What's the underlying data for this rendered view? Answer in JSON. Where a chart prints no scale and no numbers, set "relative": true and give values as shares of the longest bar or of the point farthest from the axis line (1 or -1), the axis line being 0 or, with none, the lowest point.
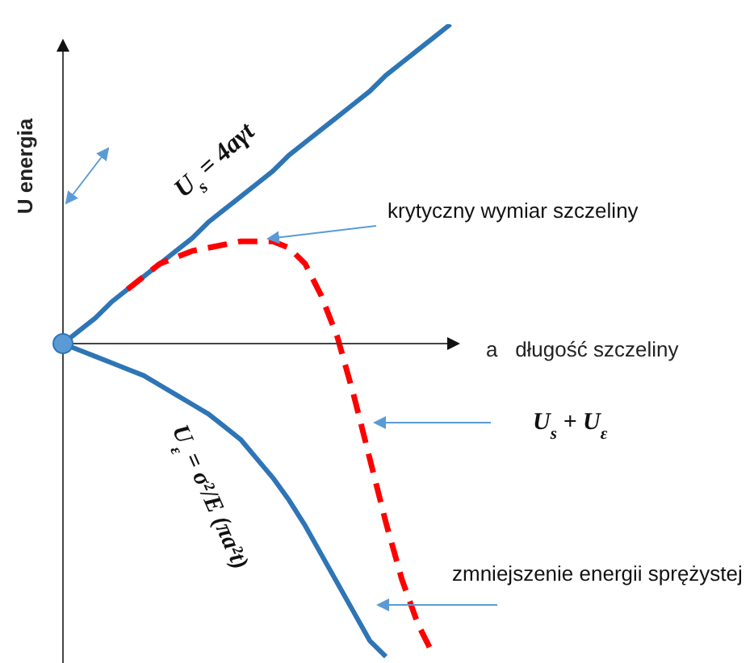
{
  "chart_data": {
    "type": "line",
    "relative": true,
    "xlabel": "a   długość szczeliny",
    "ylabel": "U energia",
    "categories": [
      null,
      null,
      null,
      null,
      null,
      null,
      null,
      null,
      null,
      null,
      null,
      null,
      null,
      null,
      null,
      null,
      null,
      null,
      null,
      null,
      null,
      null,
      null,
      null,
      null
    ],
    "series": [
      {
        "name": "U$_{s}$ = 4aγt",
        "color": "#2e75b6",
        "values": [
          0,
          0.04,
          0.08,
          0.13,
          0.17,
          0.21,
          0.25,
          0.29,
          0.33,
          0.38,
          0.42,
          0.46,
          0.5,
          0.54,
          0.59,
          0.63,
          0.67,
          0.71,
          0.75,
          0.79,
          0.84,
          0.88,
          0.92,
          0.96,
          1
        ]
      },
      {
        "name": "U$_{ε}$ = σ²/E (πa²t)",
        "color": "#2e75b6",
        "values": [
          0,
          -0.02,
          -0.04,
          -0.06,
          -0.08,
          -0.1,
          -0.13,
          -0.16,
          -0.19,
          -0.22,
          -0.26,
          -0.3,
          -0.36,
          -0.42,
          -0.49,
          -0.57,
          -0.66,
          -0.75,
          -0.84,
          -0.93,
          -0.98,
          null,
          null,
          null,
          null
        ]
      },
      {
        "color": "#ff0000",
        "line_style": "dashed",
        "values": [
          null,
          null,
          null,
          null,
          0.17,
          0.21,
          0.25,
          0.27,
          0.29,
          0.3,
          0.31,
          0.32,
          0.32,
          0.32,
          0.3,
          0.25,
          0.15,
          0.02,
          -0.16,
          -0.36,
          -0.56,
          -0.74,
          -0.88,
          -0.98,
          null
        ]
      }
    ],
    "annotations": [
      "krytyczny wymiar szczeliny",
      "zmniejszenie energii sprężystej",
      "U$_{s}$ + U$_{ε}$"
    ]
  }
}
